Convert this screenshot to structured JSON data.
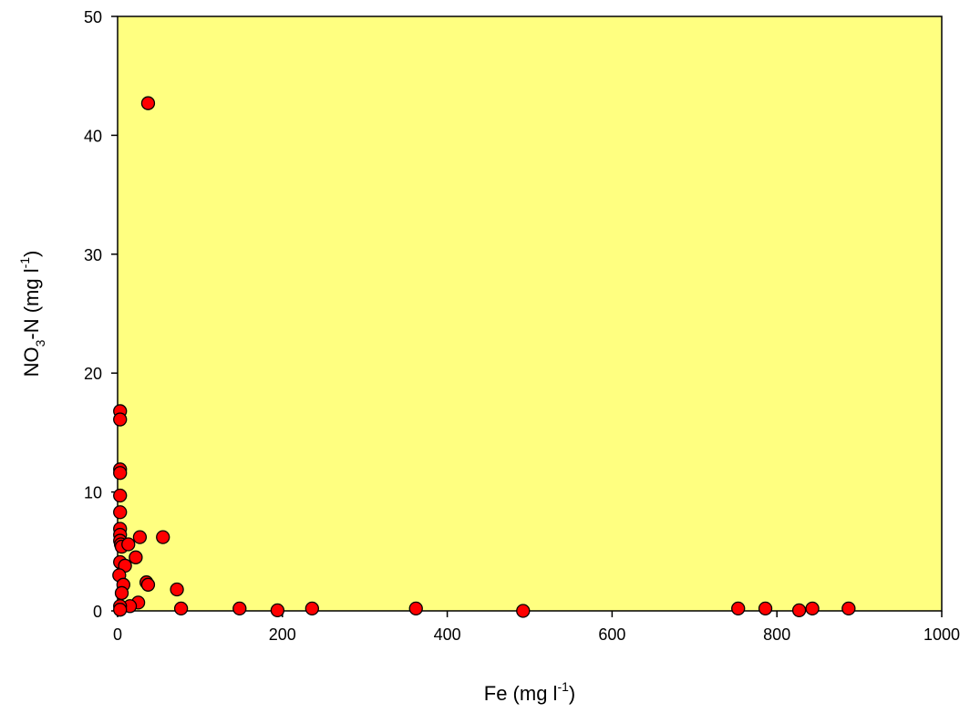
{
  "chart_data": {
    "type": "scatter",
    "title": "",
    "xlabel": {
      "base": "Fe (mg l",
      "sup": "-1",
      "tail": ")"
    },
    "ylabel": {
      "pre": "NO",
      "sub": "3",
      "mid": "-N (mg l",
      "sup": "-1",
      "tail": ")"
    },
    "xlim": [
      0,
      1000
    ],
    "ylim": [
      0,
      50
    ],
    "xticks": [
      0,
      200,
      400,
      600,
      800,
      1000
    ],
    "yticks": [
      0,
      10,
      20,
      30,
      40,
      50
    ],
    "xtick_labels": [
      "0",
      "200",
      "400",
      "600",
      "800",
      "1000"
    ],
    "ytick_labels": [
      "0",
      "10",
      "20",
      "30",
      "40",
      "50"
    ],
    "grid": false,
    "plot_background": "#ffff80",
    "marker_color": "#ff0000",
    "marker_edge": "#000000",
    "points": [
      {
        "x": 37,
        "y": 42.7
      },
      {
        "x": 3,
        "y": 16.8
      },
      {
        "x": 3,
        "y": 16.1
      },
      {
        "x": 3,
        "y": 11.9
      },
      {
        "x": 3,
        "y": 11.6
      },
      {
        "x": 3,
        "y": 9.7
      },
      {
        "x": 3,
        "y": 8.3
      },
      {
        "x": 3,
        "y": 6.9
      },
      {
        "x": 3,
        "y": 6.4
      },
      {
        "x": 3,
        "y": 5.9
      },
      {
        "x": 4,
        "y": 5.6
      },
      {
        "x": 5,
        "y": 5.4
      },
      {
        "x": 13,
        "y": 5.6
      },
      {
        "x": 27,
        "y": 6.2
      },
      {
        "x": 55,
        "y": 6.2
      },
      {
        "x": 22,
        "y": 4.5
      },
      {
        "x": 3,
        "y": 4.1
      },
      {
        "x": 9,
        "y": 3.8
      },
      {
        "x": 2,
        "y": 3.0
      },
      {
        "x": 35,
        "y": 2.4
      },
      {
        "x": 37,
        "y": 2.2
      },
      {
        "x": 7,
        "y": 2.2
      },
      {
        "x": 72,
        "y": 1.8
      },
      {
        "x": 5,
        "y": 1.5
      },
      {
        "x": 25,
        "y": 0.7
      },
      {
        "x": 15,
        "y": 0.4
      },
      {
        "x": 3,
        "y": 0.4
      },
      {
        "x": 3,
        "y": 0.1
      },
      {
        "x": 77,
        "y": 0.2
      },
      {
        "x": 148,
        "y": 0.2
      },
      {
        "x": 194,
        "y": 0.05
      },
      {
        "x": 236,
        "y": 0.2
      },
      {
        "x": 362,
        "y": 0.2
      },
      {
        "x": 492,
        "y": 0.0
      },
      {
        "x": 753,
        "y": 0.2
      },
      {
        "x": 786,
        "y": 0.2
      },
      {
        "x": 827,
        "y": 0.05
      },
      {
        "x": 843,
        "y": 0.2
      },
      {
        "x": 887,
        "y": 0.2
      }
    ]
  }
}
